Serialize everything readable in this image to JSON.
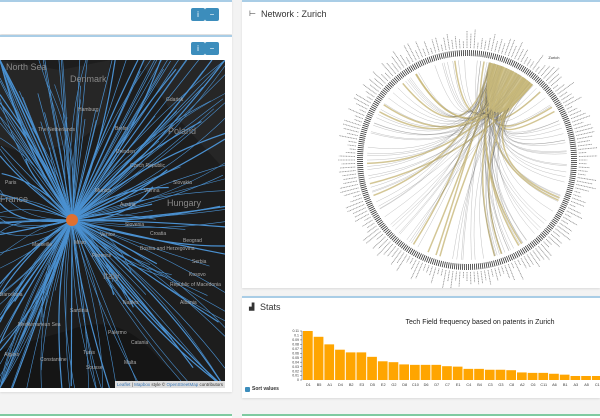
{
  "left_panels": {
    "top_buttons": {
      "info": "i",
      "collapse": "−"
    },
    "map_buttons": {
      "info": "i",
      "collapse": "−"
    }
  },
  "map": {
    "labels": {
      "north_sea": "North Sea",
      "denmark": "Denmark",
      "hamburg": "Hamburg",
      "berlin": "Berlin",
      "gdansk": "Gdańsk",
      "poland": "Poland",
      "netherlands": "The Netherlands",
      "dresden": "Dresden",
      "czech": "Czech Republic",
      "paris": "Paris",
      "france": "France",
      "munich": "Munich",
      "vienna": "Vienna",
      "slovakia": "Slovakia",
      "hungary": "Hungary",
      "austria": "Austria",
      "slovenia": "Slovenia",
      "croatia": "Croatia",
      "venice": "Venice",
      "milan": "Milan",
      "marseille": "Marseille",
      "florence": "Florence",
      "beograd": "Beograd",
      "bosnia": "Bosnia and Herzegovina",
      "serbia": "Serbia",
      "italy": "Italy",
      "kosovo": "Kosovo",
      "macedonia": "Republic of Macedonia",
      "barcelona": "Barcelona",
      "sardinia": "Sardinia",
      "naples": "Naples",
      "albania": "Albania",
      "med_sea": "Mediterranean Sea",
      "palermo": "Palermo",
      "catania": "Catania",
      "algiers": "Algiers",
      "constantine": "Constantine",
      "tunis": "Tunis",
      "sousse": "Sousse",
      "malta": "Malta"
    },
    "attribution": {
      "leaflet": "Leaflet",
      "sep": " | ",
      "mapbox": "Mapbox",
      "style": " style © ",
      "osm": "OpenStreetMap",
      "contrib": " contributors"
    },
    "line_color": "#4a90d0",
    "hub_color": "#e07030"
  },
  "network": {
    "title": "Network : Zurich",
    "center_label": "Zurich",
    "chord_color": "#c8b87a"
  },
  "stats": {
    "title": "Stats",
    "sort_label": "Sort values",
    "sort_checked": true
  },
  "chart_data": {
    "type": "bar",
    "title": "Tech Field frequency based on patents in Zurich",
    "categories": [
      "D1",
      "B5",
      "A1",
      "D4",
      "B2",
      "E3",
      "D5",
      "E2",
      "G2",
      "D8",
      "C10",
      "D6",
      "D7",
      "C7",
      "E1",
      "C4",
      "B4",
      "C3",
      "G3",
      "C8",
      "A2",
      "C6",
      "C11",
      "A6",
      "B1",
      "A3",
      "A5",
      "C1"
    ],
    "values": [
      0.11,
      0.097,
      0.08,
      0.068,
      0.062,
      0.062,
      0.052,
      0.042,
      0.04,
      0.035,
      0.034,
      0.034,
      0.034,
      0.031,
      0.03,
      0.025,
      0.025,
      0.023,
      0.023,
      0.022,
      0.017,
      0.016,
      0.016,
      0.014,
      0.012,
      0.009,
      0.009,
      0.009
    ],
    "yticks": [
      "0",
      "0.01",
      "0.02",
      "0.03",
      "0.04",
      "0.05",
      "0.06",
      "0.07",
      "0.08",
      "0.09",
      "0.1",
      "0.11"
    ],
    "ylim": [
      0,
      0.11
    ],
    "color": "#ffa500"
  }
}
